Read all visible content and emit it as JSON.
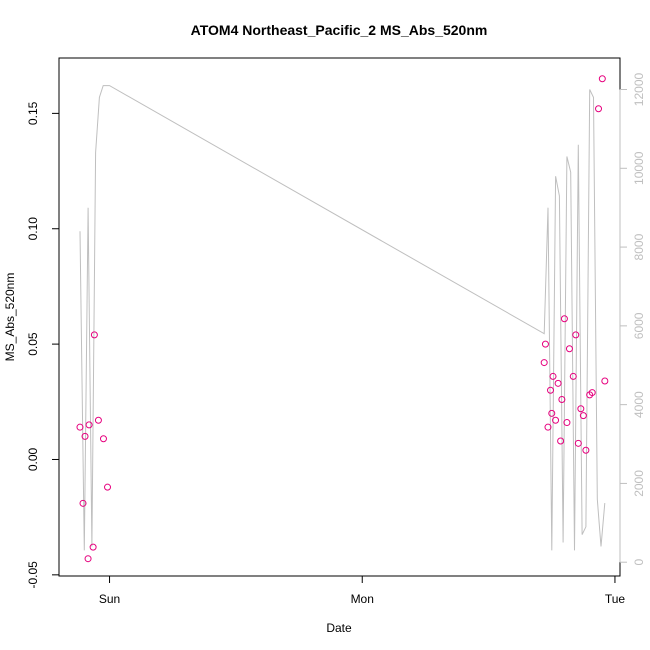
{
  "chart_data": {
    "type": "scatter",
    "title": "ATOM4 Northeast_Pacific_2 MS_Abs_520nm",
    "xlabel": "Date",
    "ylabel": "MS_Abs_520nm",
    "x_ticks": [
      {
        "label": "Sun",
        "value": 0
      },
      {
        "label": "Mon",
        "value": 1
      },
      {
        "label": "Tue",
        "value": 2
      }
    ],
    "y_ticks": [
      {
        "label": "-0.05",
        "value": -0.05
      },
      {
        "label": "0.00",
        "value": 0.0
      },
      {
        "label": "0.05",
        "value": 0.05
      },
      {
        "label": "0.10",
        "value": 0.1
      },
      {
        "label": "0.15",
        "value": 0.15
      }
    ],
    "y2_ticks": [
      {
        "label": "0",
        "value": 0
      },
      {
        "label": "2000",
        "value": 2000
      },
      {
        "label": "4000",
        "value": 4000
      },
      {
        "label": "6000",
        "value": 6000
      },
      {
        "label": "8000",
        "value": 8000
      },
      {
        "label": "10000",
        "value": 10000
      },
      {
        "label": "12000",
        "value": 12000
      }
    ],
    "xlim": [
      -0.2,
      2.02
    ],
    "ylim": [
      -0.0505,
      0.174
    ],
    "y2lim": [
      -350,
      12800
    ],
    "grid": false,
    "colors": {
      "points": "#e6007e",
      "line": "#bfbfbf",
      "frame": "#000000",
      "right_axis": "#bfbfbf"
    },
    "series": [
      {
        "kind": "points",
        "x": [
          -0.117,
          -0.105,
          -0.097,
          -0.085,
          -0.081,
          -0.065,
          -0.06,
          -0.044,
          -0.024,
          -0.008,
          1.72,
          1.725,
          1.735,
          1.745,
          1.75,
          1.755,
          1.765,
          1.775,
          1.785,
          1.79,
          1.8,
          1.81,
          1.82,
          1.835,
          1.845,
          1.855,
          1.865,
          1.875,
          1.885,
          1.9,
          1.91,
          1.935,
          1.95,
          1.96
        ],
        "y": [
          0.014,
          -0.019,
          0.01,
          -0.043,
          0.015,
          -0.038,
          0.054,
          0.017,
          0.009,
          -0.012,
          0.042,
          0.05,
          0.014,
          0.03,
          0.02,
          0.036,
          0.017,
          0.033,
          0.008,
          0.026,
          0.061,
          0.016,
          0.048,
          0.036,
          0.054,
          0.007,
          0.022,
          0.019,
          0.004,
          0.028,
          0.029,
          0.152,
          0.165,
          0.034
        ]
      },
      {
        "kind": "line",
        "x": [
          -0.117,
          -0.1,
          -0.085,
          -0.07,
          -0.055,
          -0.04,
          -0.025,
          -0.01,
          0.0,
          1.72,
          1.735,
          1.75,
          1.765,
          1.78,
          1.795,
          1.81,
          1.825,
          1.84,
          1.855,
          1.87,
          1.885,
          1.9,
          1.915,
          1.93,
          1.945,
          1.96
        ],
        "y": [
          8400,
          300,
          9000,
          400,
          10400,
          11800,
          12100,
          12100,
          12100,
          5800,
          9000,
          300,
          9800,
          9300,
          500,
          10300,
          9900,
          300,
          10600,
          700,
          900,
          12000,
          11800,
          1600,
          400,
          1500
        ]
      }
    ]
  }
}
